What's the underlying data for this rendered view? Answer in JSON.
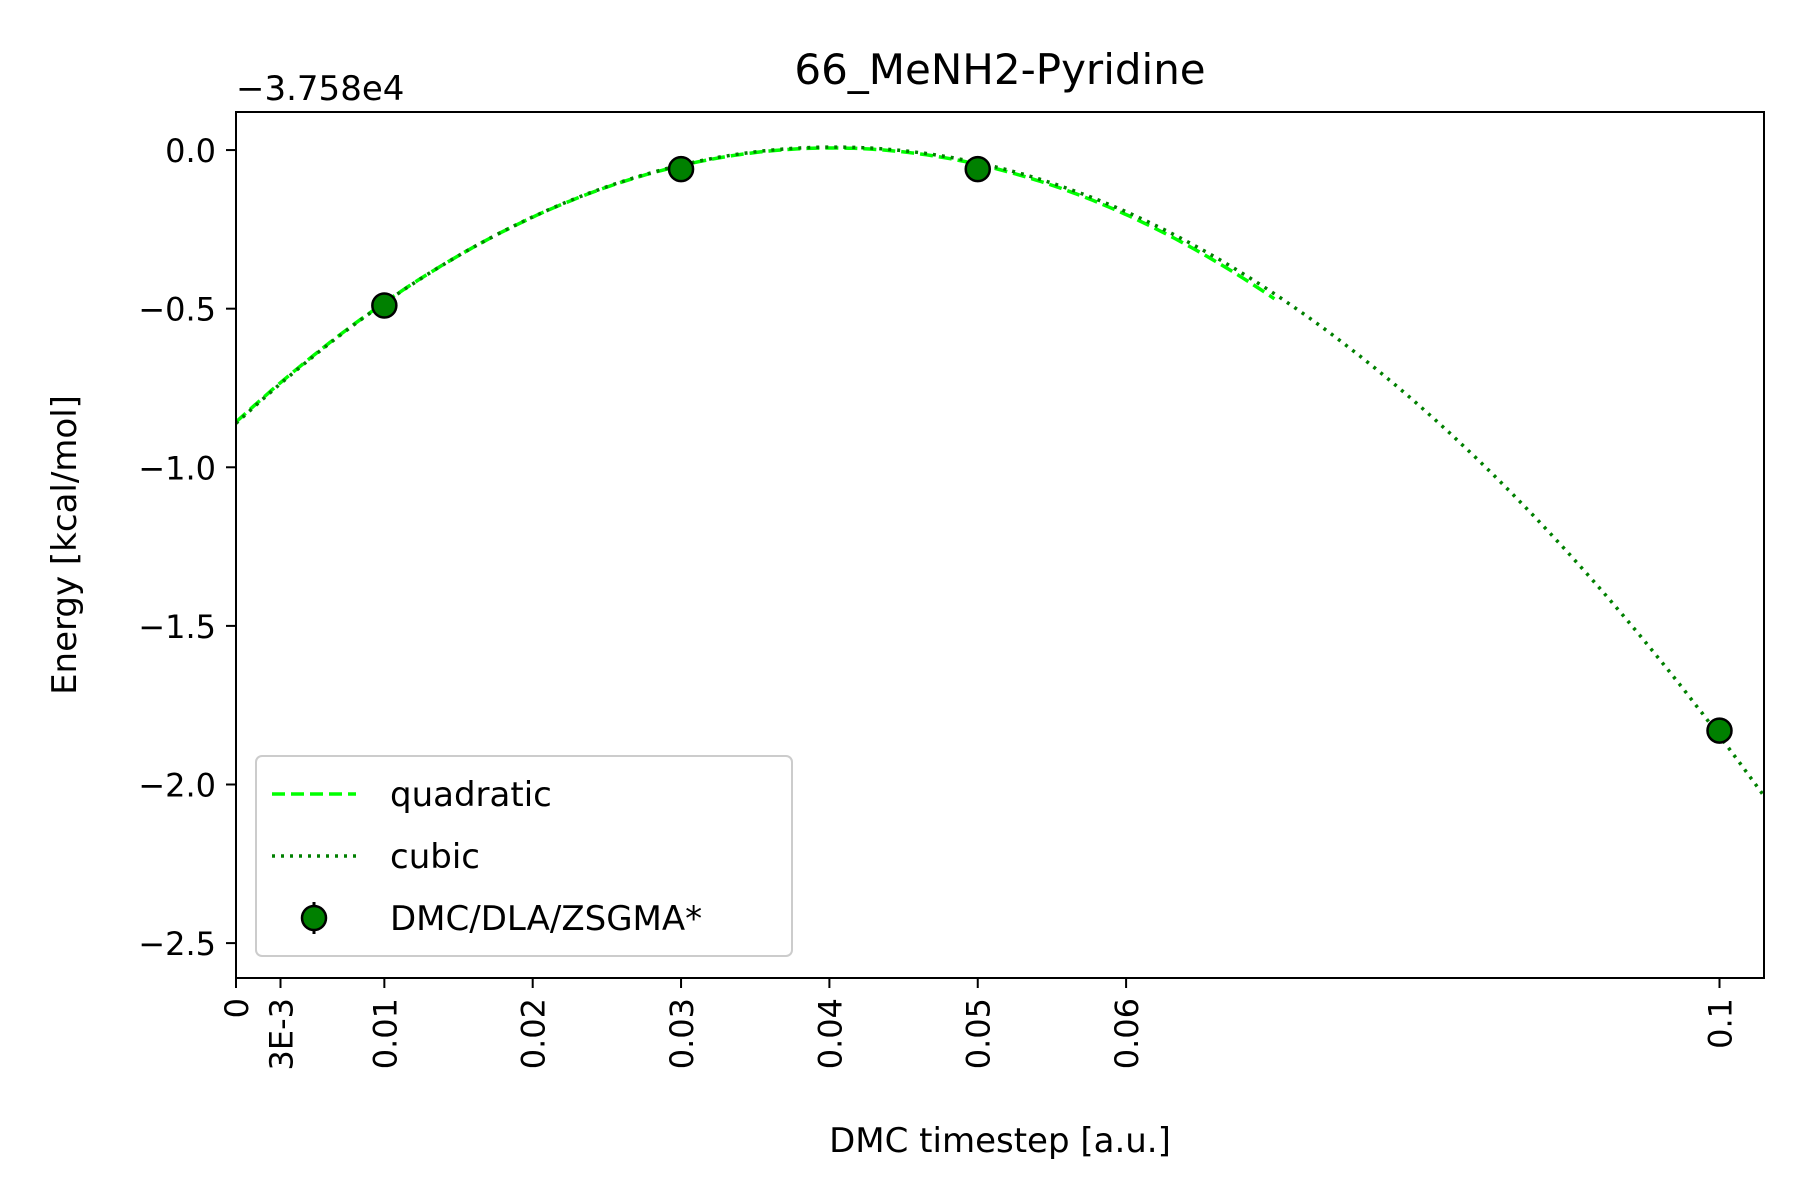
{
  "chart_data": {
    "type": "line",
    "title": "66_MeNH2-Pyridine",
    "xlabel": "DMC timestep [a.u.]",
    "ylabel": "Energy [kcal/mol]",
    "y_offset_label": "−3.758e4",
    "xlim": [
      0,
      0.103
    ],
    "ylim": [
      -2.61,
      0.12
    ],
    "x_ticks": [
      {
        "value": 0,
        "label": "0"
      },
      {
        "value": 0.003,
        "label": "3E-3"
      },
      {
        "value": 0.01,
        "label": "0.01"
      },
      {
        "value": 0.02,
        "label": "0.02"
      },
      {
        "value": 0.03,
        "label": "0.03"
      },
      {
        "value": 0.04,
        "label": "0.04"
      },
      {
        "value": 0.05,
        "label": "0.05"
      },
      {
        "value": 0.06,
        "label": "0.06"
      },
      {
        "value": 0.1,
        "label": "0.1"
      }
    ],
    "y_ticks": [
      {
        "value": 0.0,
        "label": "0.0"
      },
      {
        "value": -0.5,
        "label": "−0.5"
      },
      {
        "value": -1.0,
        "label": "−1.0"
      },
      {
        "value": -1.5,
        "label": "−1.5"
      },
      {
        "value": -2.0,
        "label": "−2.0"
      },
      {
        "value": -2.5,
        "label": "−2.5"
      }
    ],
    "series": [
      {
        "name": "quadratic",
        "style": "dashed",
        "color": "#00ff00",
        "x_range": [
          0,
          0.07
        ],
        "coefficients": [
          -0.8574,
          43.0,
          -535.0
        ]
      },
      {
        "name": "cubic",
        "style": "dotted",
        "color": "#008000",
        "x_range": [
          0,
          0.103
        ],
        "coefficients": [
          -0.8617,
          43.43,
          -547.0,
          142.0
        ]
      },
      {
        "name": "DMC/DLA/ZSGMA*",
        "style": "markers",
        "color": "#008000",
        "x": [
          0.01,
          0.03,
          0.05,
          0.1
        ],
        "y": [
          -0.49,
          -0.06,
          -0.06,
          -1.83
        ]
      }
    ],
    "legend": {
      "position": "lower-left",
      "entries": [
        "quadratic",
        "cubic",
        "DMC/DLA/ZSGMA*"
      ]
    },
    "grid": false
  }
}
